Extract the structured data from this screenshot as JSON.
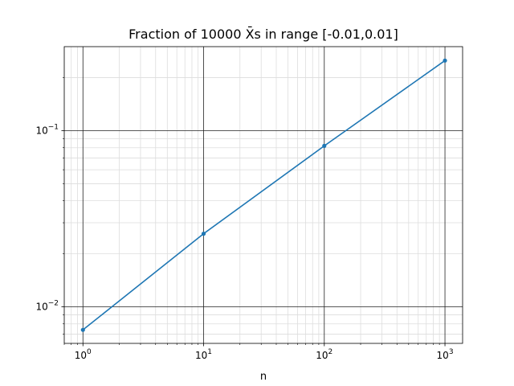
{
  "chart_data": {
    "type": "line",
    "title": "Fraction of 10000 X̄s in range [-0.01,0.01]",
    "xlabel": "n",
    "ylabel": "",
    "x_scale": "log",
    "y_scale": "log",
    "xlim": [
      0.7,
      1400
    ],
    "ylim": [
      0.0062,
      0.3
    ],
    "x_ticks": [
      1,
      10,
      100,
      1000
    ],
    "x_tick_labels": [
      {
        "base": "10",
        "exp": "0"
      },
      {
        "base": "10",
        "exp": "1"
      },
      {
        "base": "10",
        "exp": "2"
      },
      {
        "base": "10",
        "exp": "3"
      }
    ],
    "y_ticks": [
      0.01,
      0.1
    ],
    "y_tick_labels": [
      {
        "base": "10",
        "exp": "−2"
      },
      {
        "base": "10",
        "exp": "−1"
      }
    ],
    "grid": true,
    "minor_grid": true,
    "series": [
      {
        "color": "#1f77b4",
        "x": [
          1,
          10,
          100,
          1000
        ],
        "y": [
          0.0074,
          0.026,
          0.082,
          0.25
        ]
      }
    ]
  }
}
